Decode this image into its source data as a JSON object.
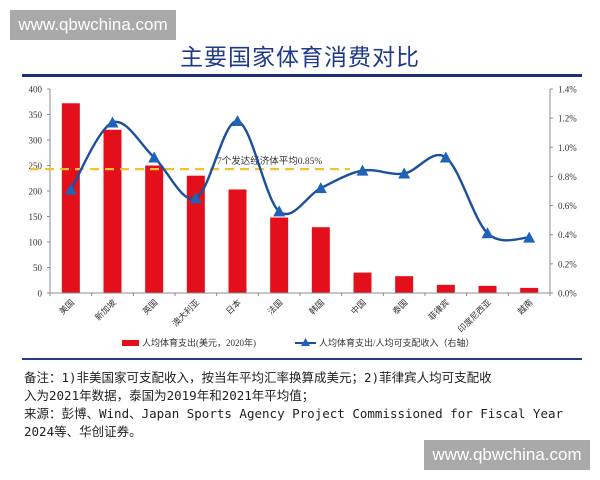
{
  "watermarks": {
    "top": "www.qbwchina.com",
    "bottom": "www.qbwchina.com"
  },
  "title": "主要国家体育消费对比",
  "colors": {
    "bar": "#e3101b",
    "line": "#1c4f9c",
    "marker": "#1e63b5",
    "avg_line": "#f2c230",
    "title": "#1f3a8a",
    "rule": "#1c2f7a"
  },
  "chart_data": {
    "type": "bar+line",
    "title": "主要国家体育消费对比",
    "categories": [
      "美国",
      "新加坡",
      "英国",
      "澳大利亚",
      "日本",
      "法国",
      "韩国",
      "中国",
      "泰国",
      "菲律宾",
      "印度尼西亚",
      "越南"
    ],
    "series": [
      {
        "name": "人均体育支出(美元，2020年)",
        "type": "bar",
        "axis": "left",
        "values": [
          372,
          320,
          250,
          230,
          203,
          148,
          129,
          40,
          33,
          16,
          14,
          10
        ]
      },
      {
        "name": "人均体育支出/人均可支配收入（右轴）",
        "type": "line",
        "axis": "right",
        "unit": "%",
        "values": [
          0.71,
          1.17,
          0.93,
          0.65,
          1.18,
          0.56,
          0.72,
          0.84,
          0.82,
          0.93,
          0.41,
          0.38
        ]
      }
    ],
    "reference_line": {
      "label": "7个发达经济体平均0.85%",
      "value": 0.85,
      "axis": "right"
    },
    "left_axis": {
      "min": 0,
      "max": 400,
      "step": 50,
      "ticks": [
        "0",
        "50",
        "100",
        "150",
        "200",
        "250",
        "300",
        "350",
        "400"
      ]
    },
    "right_axis": {
      "min": 0,
      "max": 1.4,
      "step": 0.2,
      "ticks": [
        "0.0%",
        "0.2%",
        "0.4%",
        "0.6%",
        "0.8%",
        "1.0%",
        "1.2%",
        "1.4%"
      ]
    },
    "legend": {
      "position": "bottom",
      "items": [
        "人均体育支出(美元，2020年)",
        "人均体育支出/人均可支配收入（右轴）"
      ]
    },
    "grid": false
  },
  "notes": {
    "line1": "备注：1)非美国家可支配收入，按当年平均汇率换算成美元；2)菲律宾人均可支配收",
    "line2": "入为2021年数据，泰国为2019年和2021年平均值；",
    "line3": "来源：彭博、Wind、Japan Sports Agency Project Commissioned for Fiscal Year",
    "line4": "2024等、华创证券。"
  }
}
